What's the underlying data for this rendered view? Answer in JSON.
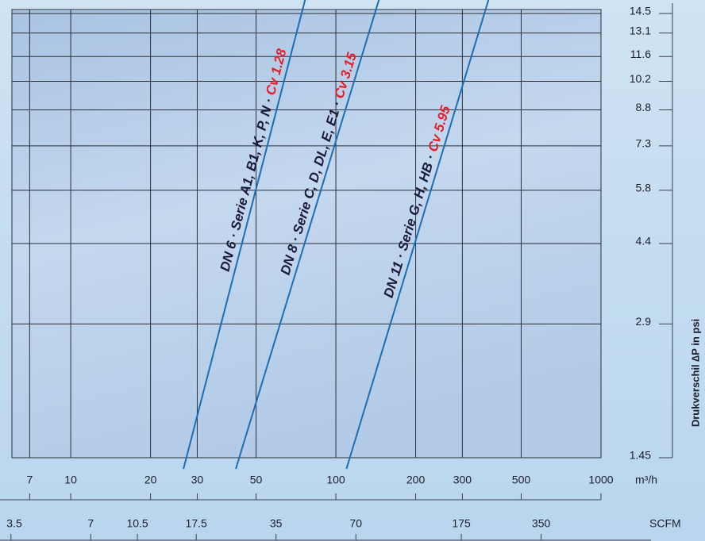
{
  "chart_data": {
    "type": "line",
    "x_unit": "m³/h",
    "x2_unit": "SCFM",
    "y_label": "Drukverschil  ∆P in psi",
    "xlog": true,
    "ylog": true,
    "grid": true,
    "xlim": [
      6,
      1000
    ],
    "xticks": [
      7,
      10,
      20,
      30,
      50,
      100,
      200,
      300,
      500,
      1000
    ],
    "x2lim": [
      3.53,
      588.6
    ],
    "x2ticks": [
      3.5,
      7,
      10.5,
      17.5,
      35,
      70,
      175,
      350
    ],
    "ylim": [
      1.45,
      14.8
    ],
    "yticks": [
      1.45,
      2.9,
      4.4,
      5.8,
      7.3,
      8.8,
      10.2,
      11.6,
      13.1,
      14.5
    ],
    "series": [
      {
        "name": "DN 6 · Serie A1, B1, K, P, N · ",
        "cv_label": "Cv 1.28",
        "color": "#1a6fb8",
        "x": [
          27.3,
          74.9
        ],
        "y": [
          1.45,
          14.8
        ]
      },
      {
        "name": "DN 8 · Serie C, D, DL, E, E1 · ",
        "cv_label": "Cv 3.15",
        "color": "#1a6fb8",
        "x": [
          43.2,
          141.7
        ],
        "y": [
          1.45,
          14.8
        ]
      },
      {
        "name": "DN 11 · Serie G, H, HB · ",
        "cv_label": "Cv 5.95",
        "color": "#1a6fb8",
        "x": [
          112.9,
          367
        ],
        "y": [
          1.45,
          14.8
        ]
      }
    ]
  }
}
